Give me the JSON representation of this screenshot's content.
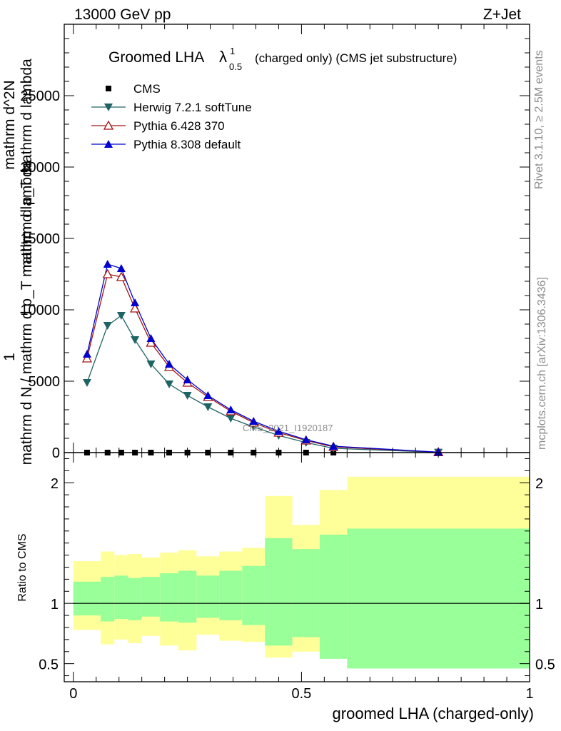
{
  "header": {
    "energy_label": "13000 GeV pp",
    "process_label": "Z+Jet"
  },
  "title": {
    "main": "Groomed LHA",
    "lambda_symbol": "λ",
    "superscript": "1",
    "subscript": "0.5",
    "suffix": "(charged only) (CMS jet substructure)"
  },
  "side_text": {
    "rivet": "Rivet 3.1.10, ≥ 2.5M events",
    "mcplots": "mcplots.cern.ch [arXiv:1306.3436]"
  },
  "watermark": "CMS_2021_I1920187",
  "colors": {
    "cms": "#000000",
    "herwig": "#1f6464",
    "pythia6": "#a01414",
    "pythia8": "#0000d0",
    "band_outer": "#ffff99",
    "band_inner": "#99ff99"
  },
  "chart_data": [
    {
      "type": "line",
      "panel": "main",
      "xlim": [
        -0.02,
        1.0
      ],
      "ylim": [
        0,
        30000
      ],
      "ylabel_lines": [
        "1",
        "mathrm d N / mathrm d p_T mathrm d lambda",
        "mathrm d^2N",
        "mathrm d p_T mathrm d lambda"
      ],
      "yticks": [
        0,
        5000,
        10000,
        15000,
        20000,
        25000
      ],
      "ytick_labels": [
        "0",
        "5000",
        "10000",
        "15000",
        "20000",
        "25000"
      ],
      "grid": false,
      "legend_position": "top-left",
      "series": [
        {
          "name": "CMS",
          "marker": "square",
          "x": [
            0.03,
            0.075,
            0.105,
            0.135,
            0.17,
            0.21,
            0.25,
            0.295,
            0.345,
            0.395,
            0.45,
            0.51,
            0.57,
            0.8
          ],
          "y": [
            0,
            0,
            0,
            0,
            0,
            0,
            0,
            0,
            0,
            0,
            0,
            0,
            0,
            0
          ]
        },
        {
          "name": "Herwig 7.2.1 softTune",
          "marker": "triangle-down",
          "x": [
            0.03,
            0.075,
            0.105,
            0.135,
            0.17,
            0.21,
            0.25,
            0.295,
            0.345,
            0.395,
            0.45,
            0.51,
            0.57,
            0.8
          ],
          "y": [
            4900,
            8900,
            9600,
            7900,
            6200,
            4800,
            4000,
            3200,
            2400,
            1800,
            1200,
            700,
            300,
            20
          ]
        },
        {
          "name": "Pythia 6.428 370",
          "marker": "triangle-up-open",
          "x": [
            0.03,
            0.075,
            0.105,
            0.135,
            0.17,
            0.21,
            0.25,
            0.295,
            0.345,
            0.395,
            0.45,
            0.51,
            0.57,
            0.8
          ],
          "y": [
            6600,
            12500,
            12300,
            10100,
            7700,
            6000,
            4900,
            3900,
            2900,
            2100,
            1400,
            850,
            400,
            30
          ]
        },
        {
          "name": "Pythia 8.308 default",
          "marker": "triangle-up",
          "x": [
            0.03,
            0.075,
            0.105,
            0.135,
            0.17,
            0.21,
            0.25,
            0.295,
            0.345,
            0.395,
            0.45,
            0.51,
            0.57,
            0.8
          ],
          "y": [
            6900,
            13200,
            12900,
            10500,
            8000,
            6200,
            5100,
            4000,
            3000,
            2200,
            1500,
            900,
            450,
            30
          ]
        }
      ]
    },
    {
      "type": "area",
      "panel": "ratio",
      "ylabel": "Ratio to CMS",
      "xlabel": "groomed LHA (charged-only)",
      "xlim": [
        -0.02,
        1.0
      ],
      "ylim": [
        0.35,
        2.25
      ],
      "xticks": [
        0,
        0.5,
        1
      ],
      "xtick_labels": [
        "0",
        "0.5",
        "1"
      ],
      "yticks": [
        0.5,
        1,
        2
      ],
      "ytick_labels": [
        "0.5",
        "1",
        "2"
      ],
      "reference_line": 1,
      "bin_edges": [
        0.0,
        0.06,
        0.09,
        0.12,
        0.15,
        0.19,
        0.23,
        0.27,
        0.32,
        0.37,
        0.42,
        0.48,
        0.54,
        0.6,
        1.0
      ],
      "outer_band": {
        "name": "stat+syst",
        "lo": [
          0.78,
          0.66,
          0.7,
          0.67,
          0.73,
          0.65,
          0.61,
          0.74,
          0.69,
          0.68,
          0.55,
          0.6,
          0.77,
          0.54,
          0.3
        ],
        "hi": [
          1.35,
          1.43,
          1.4,
          1.41,
          1.38,
          1.42,
          1.44,
          1.39,
          1.43,
          1.46,
          1.89,
          1.65,
          1.94,
          2.05,
          2.05
        ]
      },
      "inner_band": {
        "name": "stat",
        "lo": [
          0.9,
          0.85,
          0.87,
          0.86,
          0.89,
          0.85,
          0.84,
          0.88,
          0.86,
          0.82,
          0.65,
          0.72,
          0.54,
          0.46,
          0.46
        ],
        "hi": [
          1.18,
          1.22,
          1.23,
          1.21,
          1.22,
          1.25,
          1.27,
          1.23,
          1.27,
          1.31,
          1.54,
          1.45,
          1.57,
          1.62,
          1.62
        ]
      }
    }
  ]
}
